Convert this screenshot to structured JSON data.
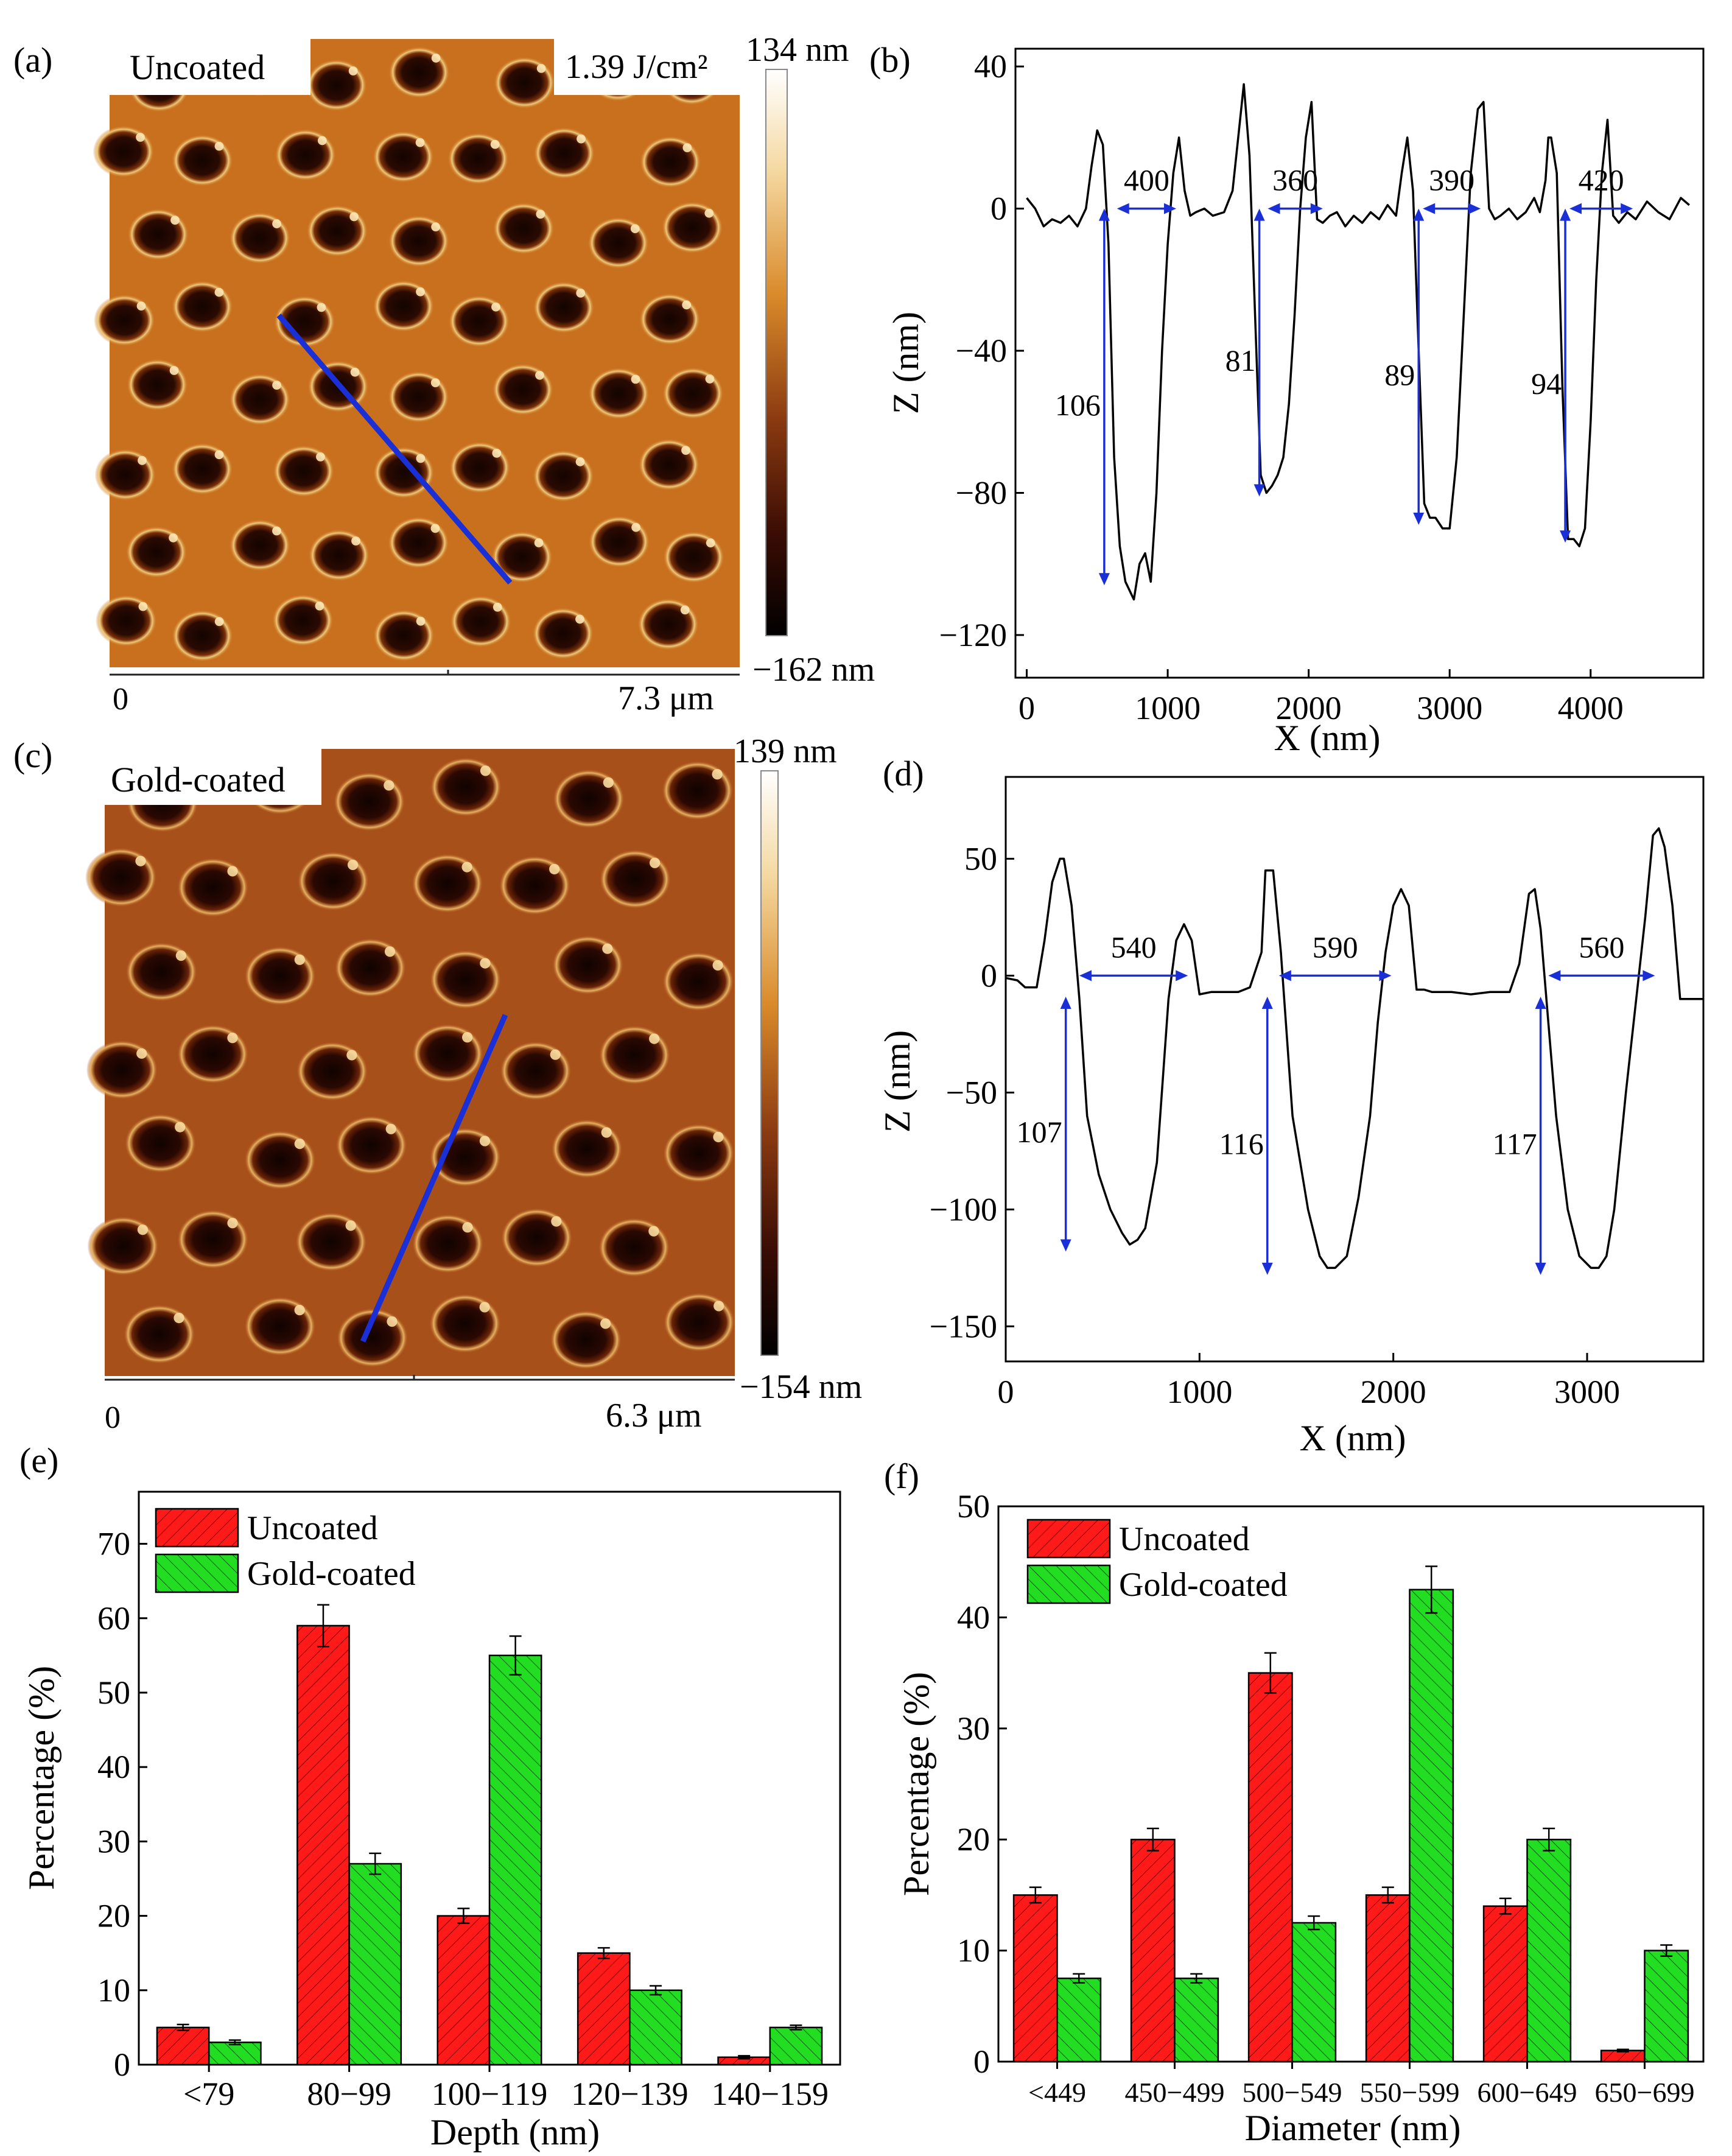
{
  "chart_data": [
    {
      "panel": "(a)",
      "type": "image",
      "subject": "AFM height map",
      "label": "Uncoated",
      "fluence": "1.39 J/cm²",
      "colorbar": {
        "max": "134 nm",
        "min": "−162 nm"
      },
      "scale": {
        "start": "0",
        "end": "7.3 μm"
      },
      "grid": {
        "rows": 8,
        "cols": 7
      },
      "colors": {
        "background": "#c8701e",
        "rim": "#f0c878",
        "pit": "#1a0600",
        "line": "#1a2fd6"
      }
    },
    {
      "panel": "(b)",
      "type": "line",
      "xlabel": "X (nm)",
      "ylabel": "Z (nm)",
      "xlim": [
        -80,
        4800
      ],
      "ylim": [
        -132,
        45
      ],
      "xticks": [
        0,
        1000,
        2000,
        3000,
        4000
      ],
      "yticks": [
        -120,
        -80,
        -40,
        0,
        40
      ],
      "ytick_labels": [
        "−120",
        "−80",
        "−40",
        "0",
        "40"
      ],
      "series": [
        {
          "name": "profile",
          "x": [
            0,
            60,
            120,
            180,
            240,
            300,
            360,
            420,
            460,
            500,
            540,
            580,
            620,
            660,
            700,
            760,
            800,
            840,
            880,
            920,
            960,
            1000,
            1040,
            1080,
            1120,
            1160,
            1200,
            1260,
            1320,
            1400,
            1460,
            1500,
            1540,
            1580,
            1620,
            1660,
            1700,
            1740,
            1780,
            1820,
            1860,
            1900,
            1940,
            1980,
            2020,
            2060,
            2100,
            2150,
            2200,
            2260,
            2320,
            2380,
            2440,
            2500,
            2560,
            2620,
            2660,
            2700,
            2740,
            2780,
            2820,
            2860,
            2900,
            2950,
            3000,
            3050,
            3100,
            3150,
            3200,
            3240,
            3280,
            3320,
            3360,
            3420,
            3480,
            3540,
            3600,
            3640,
            3680,
            3700,
            3720,
            3760,
            3800,
            3840,
            3880,
            3920,
            3960,
            4000,
            4040,
            4080,
            4120,
            4160,
            4200,
            4260,
            4320,
            4400,
            4480,
            4560,
            4640,
            4700
          ],
          "y": [
            3,
            0,
            -5,
            -3,
            -4,
            -2,
            -5,
            0,
            12,
            22,
            18,
            -10,
            -70,
            -95,
            -105,
            -110,
            -100,
            -97,
            -105,
            -80,
            -40,
            -10,
            10,
            20,
            5,
            -2,
            -1,
            0,
            -2,
            -1,
            5,
            20,
            35,
            15,
            -30,
            -75,
            -80,
            -78,
            -75,
            -70,
            -55,
            -30,
            0,
            20,
            30,
            -3,
            -4,
            -2,
            -1,
            -5,
            -2,
            -4,
            -1,
            -3,
            1,
            -2,
            10,
            20,
            5,
            -40,
            -83,
            -87,
            -87,
            -90,
            -90,
            -70,
            -30,
            10,
            28,
            30,
            0,
            -3,
            -2,
            0,
            -3,
            -1,
            3,
            -1,
            8,
            20,
            20,
            10,
            -50,
            -93,
            -93,
            -95,
            -90,
            -60,
            -20,
            10,
            25,
            -2,
            -4,
            -1,
            -3,
            2,
            -1,
            -3,
            3,
            1
          ]
        }
      ],
      "annotations": [
        {
          "text": "400",
          "kind": "width",
          "x1": 640,
          "x2": 1060,
          "y": 0
        },
        {
          "text": "360",
          "kind": "width",
          "x1": 1710,
          "x2": 2100,
          "y": 0
        },
        {
          "text": "390",
          "kind": "width",
          "x1": 2810,
          "x2": 3220,
          "y": 0
        },
        {
          "text": "420",
          "kind": "width",
          "x1": 3850,
          "x2": 4300,
          "y": 0
        },
        {
          "text": "106",
          "kind": "depth",
          "x": 550,
          "y1": 0,
          "y2": -106
        },
        {
          "text": "81",
          "kind": "depth",
          "x": 1650,
          "y1": 0,
          "y2": -81
        },
        {
          "text": "89",
          "kind": "depth",
          "x": 2780,
          "y1": 0,
          "y2": -89
        },
        {
          "text": "94",
          "kind": "depth",
          "x": 3820,
          "y1": 0,
          "y2": -94
        }
      ]
    },
    {
      "panel": "(c)",
      "type": "image",
      "subject": "AFM height map",
      "label": "Gold-coated",
      "colorbar": {
        "max": "139 nm",
        "min": "−154 nm"
      },
      "scale": {
        "start": "0",
        "end": "6.3 μm"
      },
      "grid": {
        "rows": 7,
        "cols": 6
      },
      "colors": {
        "background": "#a8501a",
        "rim": "#e8b060",
        "pit": "#150400",
        "line": "#1a2fd6"
      }
    },
    {
      "panel": "(d)",
      "type": "line",
      "xlabel": "X (nm)",
      "ylabel": "Z (nm)",
      "xlim": [
        0,
        3600
      ],
      "ylim": [
        -165,
        85
      ],
      "xticks": [
        0,
        1000,
        2000,
        3000
      ],
      "yticks": [
        -150,
        -100,
        -50,
        0,
        50
      ],
      "ytick_labels": [
        "−150",
        "−100",
        "−50",
        "0",
        "50"
      ],
      "series": [
        {
          "name": "profile",
          "x": [
            0,
            60,
            100,
            160,
            200,
            240,
            280,
            300,
            340,
            380,
            420,
            480,
            540,
            600,
            640,
            680,
            720,
            780,
            840,
            880,
            920,
            960,
            1000,
            1060,
            1120,
            1200,
            1260,
            1320,
            1340,
            1380,
            1420,
            1480,
            1560,
            1620,
            1660,
            1700,
            1760,
            1820,
            1880,
            1920,
            1960,
            2000,
            2040,
            2080,
            2120,
            2160,
            2200,
            2300,
            2400,
            2500,
            2600,
            2650,
            2700,
            2730,
            2760,
            2800,
            2840,
            2900,
            2960,
            3020,
            3060,
            3100,
            3140,
            3200,
            3260,
            3300,
            3340,
            3370,
            3400,
            3440,
            3480,
            3520,
            3600
          ],
          "y": [
            -1,
            -2,
            -5,
            -5,
            15,
            40,
            50,
            50,
            30,
            -10,
            -60,
            -85,
            -100,
            -110,
            -115,
            -113,
            -108,
            -80,
            -10,
            15,
            22,
            15,
            -8,
            -7,
            -7,
            -7,
            -5,
            10,
            45,
            45,
            10,
            -60,
            -100,
            -120,
            -125,
            -125,
            -120,
            -95,
            -60,
            -20,
            10,
            30,
            37,
            30,
            -6,
            -6,
            -7,
            -7,
            -8,
            -7,
            -7,
            5,
            35,
            37,
            20,
            -20,
            -60,
            -100,
            -120,
            -125,
            -125,
            -120,
            -100,
            -50,
            -5,
            25,
            60,
            63,
            55,
            30,
            -10,
            -10,
            -10
          ]
        }
      ],
      "annotations": [
        {
          "text": "540",
          "kind": "width",
          "x1": 380,
          "x2": 940,
          "y": 0
        },
        {
          "text": "590",
          "kind": "width",
          "x1": 1410,
          "x2": 1990,
          "y": 0
        },
        {
          "text": "560",
          "kind": "width",
          "x1": 2800,
          "x2": 3350,
          "y": 0
        },
        {
          "text": "107",
          "kind": "depth",
          "x": 310,
          "y1": -9,
          "y2": -118
        },
        {
          "text": "116",
          "kind": "depth",
          "x": 1350,
          "y1": -9,
          "y2": -128
        },
        {
          "text": "117",
          "kind": "depth",
          "x": 2760,
          "y1": -9,
          "y2": -128
        }
      ]
    },
    {
      "panel": "(e)",
      "type": "bar",
      "xlabel": "Depth (nm)",
      "ylabel": "Percentage (%)",
      "ylim": [
        0,
        77
      ],
      "yticks": [
        0,
        10,
        20,
        30,
        40,
        50,
        60,
        70
      ],
      "categories": [
        "<79",
        "80−99",
        "100−119",
        "120−139",
        "140−159"
      ],
      "series": [
        {
          "name": "Uncoated",
          "color": "#ff1a1a",
          "values": [
            5,
            59,
            20,
            15,
            1
          ],
          "errors": [
            0.4,
            2.8,
            1.0,
            0.7,
            0.2
          ]
        },
        {
          "name": "Gold-coated",
          "color": "#22dd22",
          "values": [
            3,
            27,
            55,
            10,
            5
          ],
          "errors": [
            0.3,
            1.4,
            2.6,
            0.6,
            0.3
          ]
        }
      ],
      "legend": "top-left"
    },
    {
      "panel": "(f)",
      "type": "bar",
      "xlabel": "Diameter (nm)",
      "ylabel": "Percentage (%)",
      "ylim": [
        0,
        50
      ],
      "yticks": [
        0,
        10,
        20,
        30,
        40,
        50
      ],
      "categories": [
        "<449",
        "450−499",
        "500−549",
        "550−599",
        "600−649",
        "650−699"
      ],
      "series": [
        {
          "name": "Uncoated",
          "color": "#ff1a1a",
          "values": [
            15,
            20,
            35,
            15,
            14,
            1
          ],
          "errors": [
            0.7,
            1.0,
            1.8,
            0.7,
            0.7,
            0.1
          ]
        },
        {
          "name": "Gold-coated",
          "color": "#22dd22",
          "values": [
            7.5,
            7.5,
            12.5,
            42.5,
            20,
            10
          ],
          "errors": [
            0.4,
            0.4,
            0.6,
            2.1,
            1.0,
            0.5
          ]
        }
      ],
      "legend": "top-left"
    }
  ]
}
